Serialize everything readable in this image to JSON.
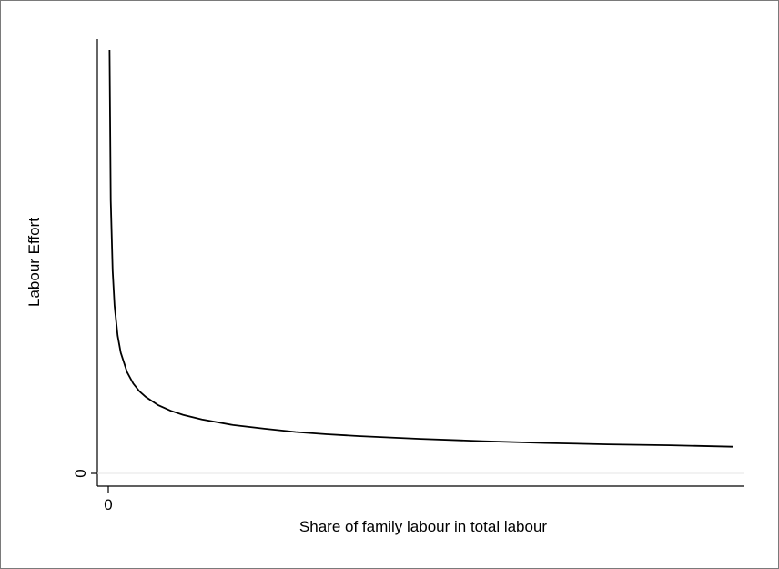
{
  "chart_data": {
    "type": "line",
    "title": "",
    "xlabel": "Share of family labour in total labour",
    "ylabel": "Labour Effort",
    "x_ticks": [
      {
        "value": 0,
        "label": "0"
      }
    ],
    "y_ticks": [
      {
        "value": 0,
        "label": "0"
      }
    ],
    "grid": false,
    "reference_line": {
      "axis": "y",
      "value": 0,
      "color": "#e6e6e6"
    },
    "xlim": [
      0,
      1
    ],
    "ylim": [
      -0.0065,
      0.1
    ],
    "line_color": "#000000",
    "series": [
      {
        "x": [
          0.002,
          0.004,
          0.007,
          0.01,
          0.015,
          0.02,
          0.03,
          0.04,
          0.05,
          0.06,
          0.08,
          0.1,
          0.12,
          0.15,
          0.2,
          0.25,
          0.3,
          0.35,
          0.4,
          0.5,
          0.6,
          0.7,
          0.8,
          0.9,
          1.0
        ],
        "y": [
          0.0919,
          0.0593,
          0.044,
          0.0364,
          0.0299,
          0.0262,
          0.022,
          0.0195,
          0.0178,
          0.0166,
          0.0148,
          0.0136,
          0.0127,
          0.0117,
          0.0105,
          0.0097,
          0.009,
          0.0085,
          0.0081,
          0.0075,
          0.007,
          0.0066,
          0.0063,
          0.0061,
          0.0058
        ]
      }
    ]
  }
}
